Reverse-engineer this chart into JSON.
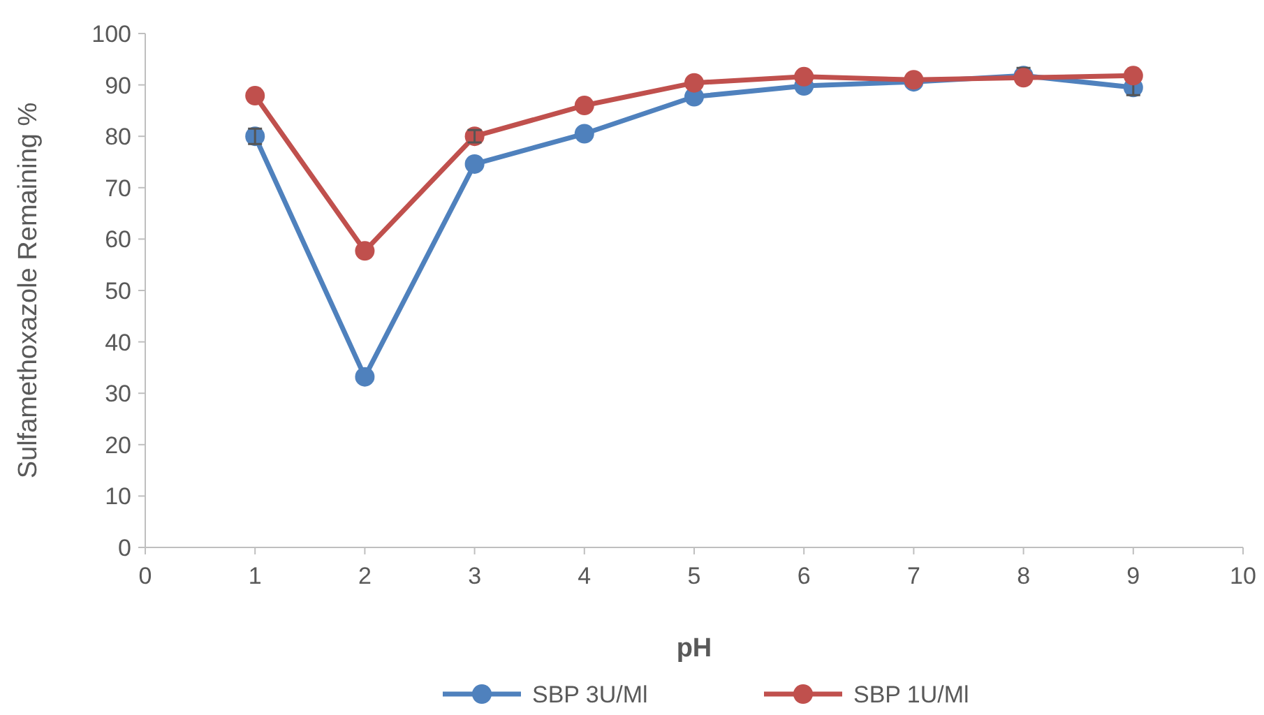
{
  "chart_data": {
    "type": "line",
    "xlabel": "pH",
    "ylabel": "Sulfamethoxazole Remaining %",
    "x": [
      1,
      2,
      3,
      4,
      5,
      6,
      7,
      8,
      9
    ],
    "xlim": [
      0,
      10
    ],
    "xticks": [
      0,
      1,
      2,
      3,
      4,
      5,
      6,
      7,
      8,
      9,
      10
    ],
    "ylim": [
      0,
      100
    ],
    "yticks": [
      0,
      10,
      20,
      30,
      40,
      50,
      60,
      70,
      80,
      90,
      100
    ],
    "series": [
      {
        "name": "SBP 3U/Ml",
        "color": "#4f81bd",
        "values": [
          80,
          33.2,
          74.6,
          80.5,
          87.7,
          89.8,
          90.6,
          91.8,
          89.5
        ],
        "errors": [
          1.5,
          null,
          null,
          null,
          null,
          null,
          null,
          1.5,
          1.5
        ]
      },
      {
        "name": "SBP 1U/Ml",
        "color": "#c0504d",
        "values": [
          87.9,
          57.7,
          80,
          86,
          90.4,
          91.6,
          91,
          91.4,
          91.8
        ],
        "errors": [
          null,
          null,
          1.2,
          null,
          null,
          null,
          null,
          null,
          null
        ]
      }
    ],
    "grid": false,
    "legend": "bottom",
    "marker": "circle",
    "line_style": "solid"
  }
}
